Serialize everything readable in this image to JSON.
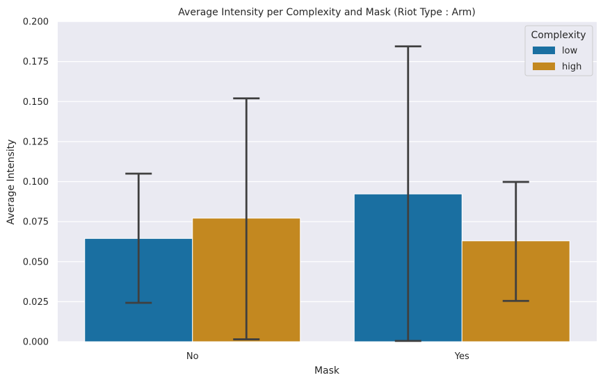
{
  "chart_data": {
    "type": "bar",
    "title": "Average Intensity per Complexity and Mask (Riot Type : Arm)",
    "xlabel": "Mask",
    "ylabel": "Average Intensity",
    "categories": [
      "No",
      "Yes"
    ],
    "ylim": [
      0,
      0.2
    ],
    "yticks": [
      "0.000",
      "0.025",
      "0.050",
      "0.075",
      "0.100",
      "0.125",
      "0.150",
      "0.175",
      "0.200"
    ],
    "grid": true,
    "legend": {
      "title": "Complexity",
      "placement": "top-right"
    },
    "series": [
      {
        "name": "low",
        "color": "#1a6fa1",
        "values": [
          0.0645,
          0.0923
        ],
        "err_low": [
          0.0243,
          0.0005
        ],
        "err_high": [
          0.105,
          0.1845
        ]
      },
      {
        "name": "high",
        "color": "#c38820",
        "values": [
          0.0772,
          0.063
        ],
        "err_low": [
          0.0015,
          0.0255
        ],
        "err_high": [
          0.152,
          0.0998
        ]
      }
    ]
  }
}
